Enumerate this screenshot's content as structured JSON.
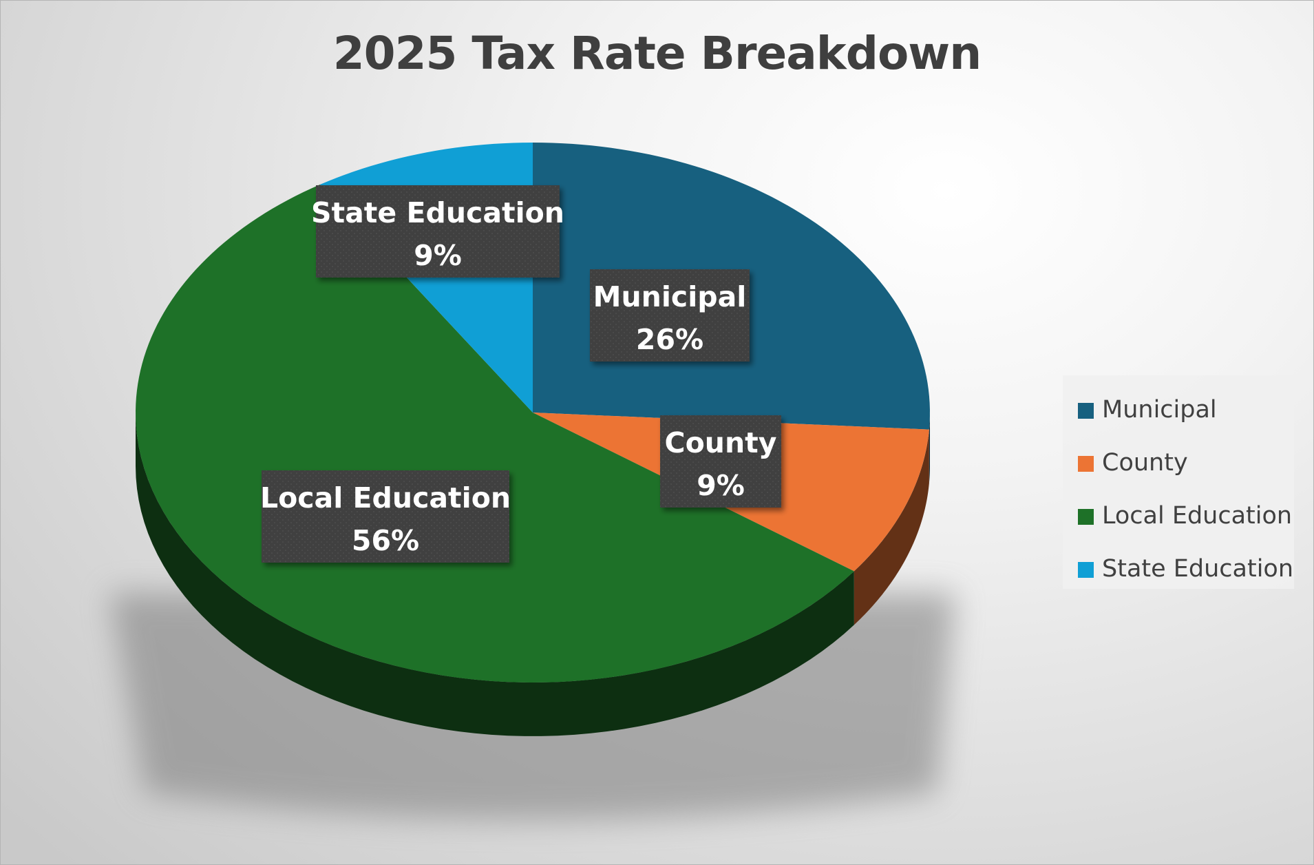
{
  "chart_data": {
    "type": "pie",
    "title": "2025 Tax Rate Breakdown",
    "style": "3d-pie",
    "legend_position": "right",
    "slices": [
      {
        "name": "Municipal",
        "value": 26,
        "label_value": "26%",
        "color": "#17607f"
      },
      {
        "name": "County",
        "value": 9,
        "label_value": "9%",
        "color": "#ec7434"
      },
      {
        "name": "Local Education",
        "value": 56,
        "label_value": "56%",
        "color": "#1e7128"
      },
      {
        "name": "State Education",
        "value": 9,
        "label_value": "9%",
        "color": "#109fd5"
      }
    ],
    "label_box_color": "#3f3f3f",
    "label_text_color": "#ffffff"
  }
}
